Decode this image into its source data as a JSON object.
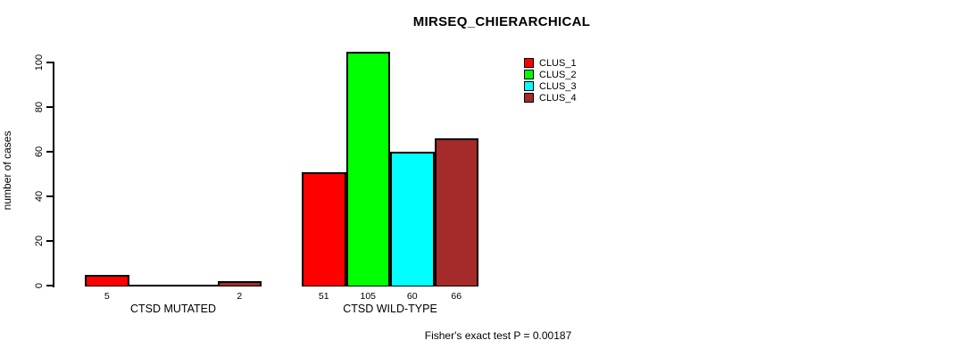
{
  "title": "MIRSEQ_CHIERARCHICAL",
  "footer": "Fisher's exact test P = 0.00187",
  "chart_data": {
    "type": "bar",
    "title": "MIRSEQ_CHIERARCHICAL",
    "xlabel": "",
    "ylabel": "number of cases",
    "ylim": [
      0,
      105
    ],
    "yticks": [
      0,
      20,
      40,
      60,
      80,
      100
    ],
    "grid": false,
    "legend_position": "top-right",
    "series": [
      {
        "name": "CLUS_1",
        "color": "#FF0000"
      },
      {
        "name": "CLUS_2",
        "color": "#00FF00"
      },
      {
        "name": "CLUS_3",
        "color": "#00FFFF"
      },
      {
        "name": "CLUS_4",
        "color": "#A52A2A"
      }
    ],
    "categories": [
      "CTSD MUTATED",
      "CTSD WILD-TYPE"
    ],
    "values": [
      [
        5,
        0,
        0,
        2
      ],
      [
        51,
        105,
        60,
        66
      ]
    ],
    "bar_labels": [
      [
        "5",
        "",
        "",
        "2"
      ],
      [
        "51",
        "105",
        "60",
        "66"
      ]
    ],
    "annotation": "Fisher's exact test P = 0.00187"
  }
}
